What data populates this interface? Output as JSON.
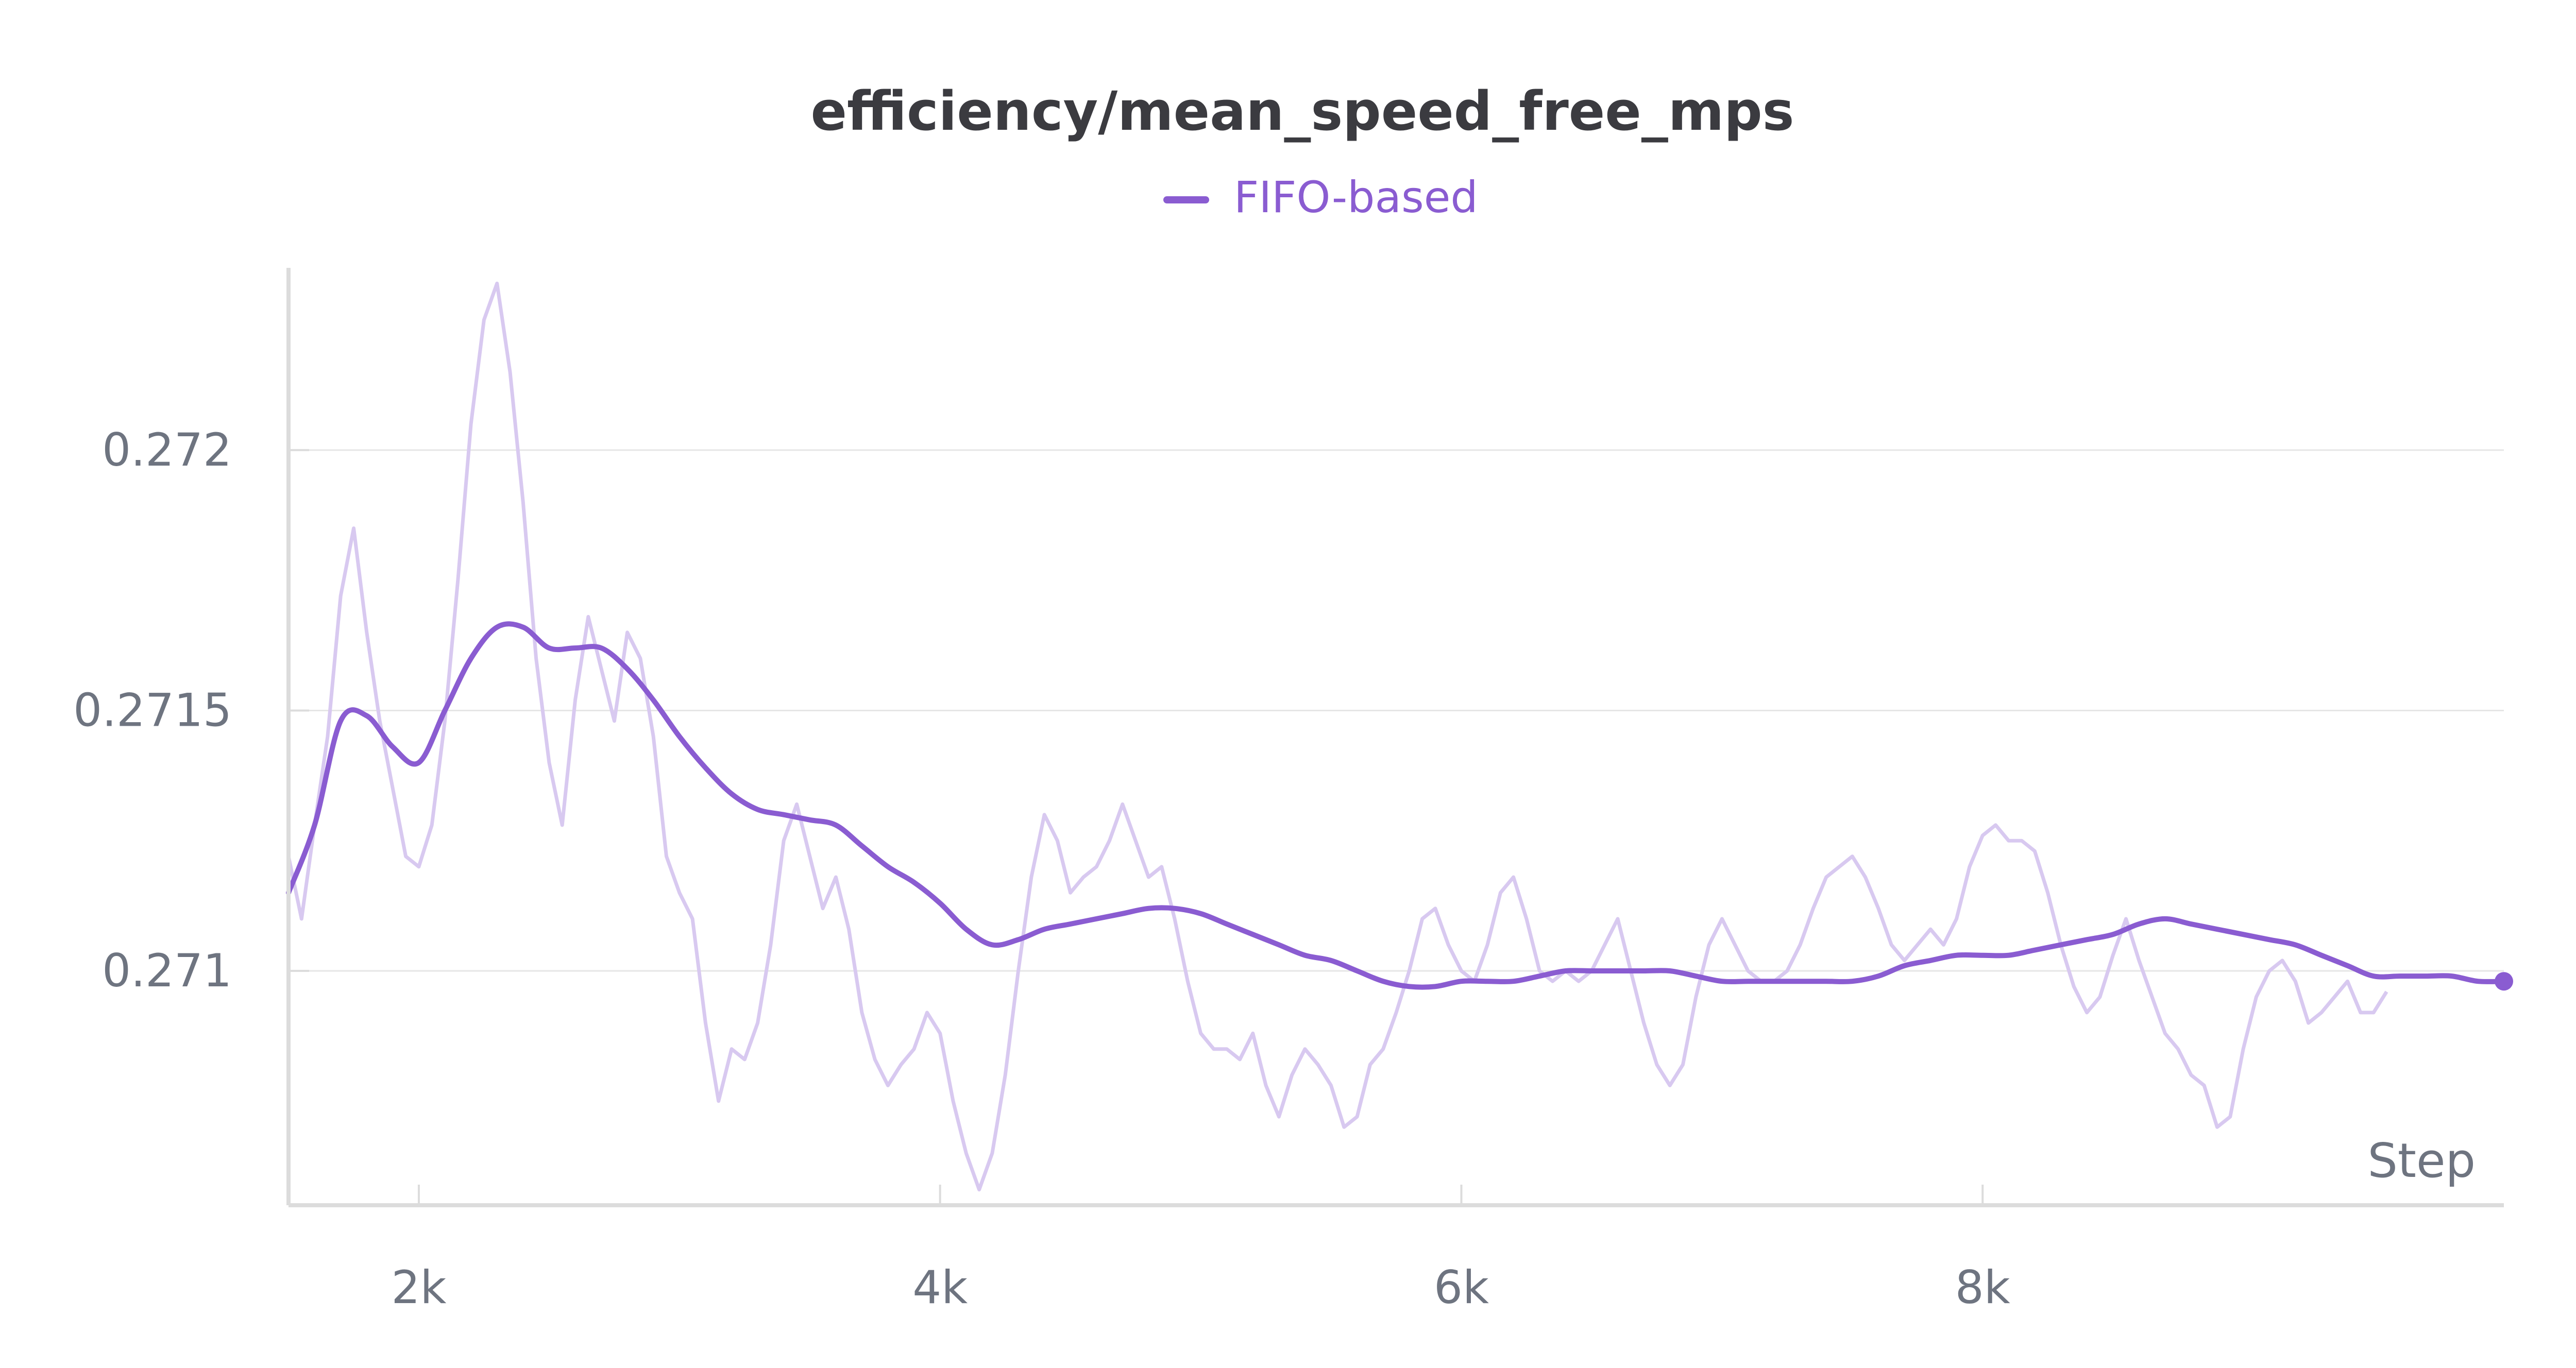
{
  "chart_data": {
    "type": "line",
    "title": "efficiency/mean_speed_free_mps",
    "xlabel": "Step",
    "ylabel": "",
    "xlim": [
      1500,
      10000
    ],
    "ylim": [
      0.27055,
      0.27235
    ],
    "x_ticks": [
      2000,
      4000,
      6000,
      8000
    ],
    "x_tick_labels": [
      "2k",
      "4k",
      "6k",
      "8k"
    ],
    "y_ticks": [
      0.271,
      0.2715,
      0.272
    ],
    "y_tick_labels": [
      "0.271",
      "0.2715",
      "0.272"
    ],
    "grid": true,
    "legend_position": "top-center",
    "colors": {
      "smoothed": "#8a5cd1",
      "raw": "#d8c9f0",
      "grid": "#e6e6e6",
      "axis": "#dcdcdc"
    },
    "series": [
      {
        "name": "FIFO-based",
        "kind": "smoothed",
        "points": [
          [
            1500,
            0.27115
          ],
          [
            1600,
            0.27128
          ],
          [
            1700,
            0.27148
          ],
          [
            1800,
            0.27149
          ],
          [
            1900,
            0.27143
          ],
          [
            2000,
            0.2714
          ],
          [
            2100,
            0.2715
          ],
          [
            2200,
            0.2716
          ],
          [
            2300,
            0.27166
          ],
          [
            2400,
            0.27166
          ],
          [
            2500,
            0.27162
          ],
          [
            2600,
            0.27162
          ],
          [
            2700,
            0.27162
          ],
          [
            2800,
            0.27158
          ],
          [
            2900,
            0.27152
          ],
          [
            3000,
            0.27145
          ],
          [
            3100,
            0.27139
          ],
          [
            3200,
            0.27134
          ],
          [
            3300,
            0.27131
          ],
          [
            3400,
            0.2713
          ],
          [
            3500,
            0.27129
          ],
          [
            3600,
            0.27128
          ],
          [
            3700,
            0.27124
          ],
          [
            3800,
            0.2712
          ],
          [
            3900,
            0.27117
          ],
          [
            4000,
            0.27113
          ],
          [
            4100,
            0.27108
          ],
          [
            4200,
            0.27105
          ],
          [
            4300,
            0.27106
          ],
          [
            4400,
            0.27108
          ],
          [
            4500,
            0.27109
          ],
          [
            4600,
            0.2711
          ],
          [
            4700,
            0.27111
          ],
          [
            4800,
            0.27112
          ],
          [
            4900,
            0.27112
          ],
          [
            5000,
            0.27111
          ],
          [
            5100,
            0.27109
          ],
          [
            5200,
            0.27107
          ],
          [
            5300,
            0.27105
          ],
          [
            5400,
            0.27103
          ],
          [
            5500,
            0.27102
          ],
          [
            5600,
            0.271
          ],
          [
            5700,
            0.27098
          ],
          [
            5800,
            0.27097
          ],
          [
            5900,
            0.27097
          ],
          [
            6000,
            0.27098
          ],
          [
            6100,
            0.27098
          ],
          [
            6200,
            0.27098
          ],
          [
            6300,
            0.27099
          ],
          [
            6400,
            0.271
          ],
          [
            6500,
            0.271
          ],
          [
            6600,
            0.271
          ],
          [
            6700,
            0.271
          ],
          [
            6800,
            0.271
          ],
          [
            6900,
            0.27099
          ],
          [
            7000,
            0.27098
          ],
          [
            7100,
            0.27098
          ],
          [
            7200,
            0.27098
          ],
          [
            7300,
            0.27098
          ],
          [
            7400,
            0.27098
          ],
          [
            7500,
            0.27098
          ],
          [
            7600,
            0.27099
          ],
          [
            7700,
            0.27101
          ],
          [
            7800,
            0.27102
          ],
          [
            7900,
            0.27103
          ],
          [
            8000,
            0.27103
          ],
          [
            8100,
            0.27103
          ],
          [
            8200,
            0.27104
          ],
          [
            8300,
            0.27105
          ],
          [
            8400,
            0.27106
          ],
          [
            8500,
            0.27107
          ],
          [
            8600,
            0.27109
          ],
          [
            8700,
            0.2711
          ],
          [
            8800,
            0.27109
          ],
          [
            8900,
            0.27108
          ],
          [
            9000,
            0.27107
          ],
          [
            9100,
            0.27106
          ],
          [
            9200,
            0.27105
          ],
          [
            9300,
            0.27103
          ],
          [
            9400,
            0.27101
          ],
          [
            9500,
            0.27099
          ],
          [
            9600,
            0.27099
          ],
          [
            9700,
            0.27099
          ],
          [
            9800,
            0.27099
          ],
          [
            9900,
            0.27098
          ],
          [
            10000,
            0.27098
          ]
        ]
      },
      {
        "name": "",
        "kind": "raw",
        "points": [
          [
            1500,
            0.27122
          ],
          [
            1550,
            0.2711
          ],
          [
            1600,
            0.27128
          ],
          [
            1650,
            0.27145
          ],
          [
            1700,
            0.27172
          ],
          [
            1750,
            0.27185
          ],
          [
            1800,
            0.27165
          ],
          [
            1850,
            0.27148
          ],
          [
            1900,
            0.27135
          ],
          [
            1950,
            0.27122
          ],
          [
            2000,
            0.2712
          ],
          [
            2050,
            0.27128
          ],
          [
            2100,
            0.27148
          ],
          [
            2150,
            0.27175
          ],
          [
            2200,
            0.27205
          ],
          [
            2250,
            0.27225
          ],
          [
            2300,
            0.27232
          ],
          [
            2350,
            0.27215
          ],
          [
            2400,
            0.2719
          ],
          [
            2450,
            0.2716
          ],
          [
            2500,
            0.2714
          ],
          [
            2550,
            0.27128
          ],
          [
            2600,
            0.27152
          ],
          [
            2650,
            0.27168
          ],
          [
            2700,
            0.27158
          ],
          [
            2750,
            0.27148
          ],
          [
            2800,
            0.27165
          ],
          [
            2850,
            0.2716
          ],
          [
            2900,
            0.27145
          ],
          [
            2950,
            0.27122
          ],
          [
            3000,
            0.27115
          ],
          [
            3050,
            0.2711
          ],
          [
            3100,
            0.2709
          ],
          [
            3150,
            0.27075
          ],
          [
            3200,
            0.27085
          ],
          [
            3250,
            0.27083
          ],
          [
            3300,
            0.2709
          ],
          [
            3350,
            0.27105
          ],
          [
            3400,
            0.27125
          ],
          [
            3450,
            0.27132
          ],
          [
            3500,
            0.27122
          ],
          [
            3550,
            0.27112
          ],
          [
            3600,
            0.27118
          ],
          [
            3650,
            0.27108
          ],
          [
            3700,
            0.27092
          ],
          [
            3750,
            0.27083
          ],
          [
            3800,
            0.27078
          ],
          [
            3850,
            0.27082
          ],
          [
            3900,
            0.27085
          ],
          [
            3950,
            0.27092
          ],
          [
            4000,
            0.27088
          ],
          [
            4050,
            0.27075
          ],
          [
            4100,
            0.27065
          ],
          [
            4150,
            0.27058
          ],
          [
            4200,
            0.27065
          ],
          [
            4250,
            0.2708
          ],
          [
            4300,
            0.271
          ],
          [
            4350,
            0.27118
          ],
          [
            4400,
            0.2713
          ],
          [
            4450,
            0.27125
          ],
          [
            4500,
            0.27115
          ],
          [
            4550,
            0.27118
          ],
          [
            4600,
            0.2712
          ],
          [
            4650,
            0.27125
          ],
          [
            4700,
            0.27132
          ],
          [
            4750,
            0.27125
          ],
          [
            4800,
            0.27118
          ],
          [
            4850,
            0.2712
          ],
          [
            4900,
            0.2711
          ],
          [
            4950,
            0.27098
          ],
          [
            5000,
            0.27088
          ],
          [
            5050,
            0.27085
          ],
          [
            5100,
            0.27085
          ],
          [
            5150,
            0.27083
          ],
          [
            5200,
            0.27088
          ],
          [
            5250,
            0.27078
          ],
          [
            5300,
            0.27072
          ],
          [
            5350,
            0.2708
          ],
          [
            5400,
            0.27085
          ],
          [
            5450,
            0.27082
          ],
          [
            5500,
            0.27078
          ],
          [
            5550,
            0.2707
          ],
          [
            5600,
            0.27072
          ],
          [
            5650,
            0.27082
          ],
          [
            5700,
            0.27085
          ],
          [
            5750,
            0.27092
          ],
          [
            5800,
            0.271
          ],
          [
            5850,
            0.2711
          ],
          [
            5900,
            0.27112
          ],
          [
            5950,
            0.27105
          ],
          [
            6000,
            0.271
          ],
          [
            6050,
            0.27098
          ],
          [
            6100,
            0.27105
          ],
          [
            6150,
            0.27115
          ],
          [
            6200,
            0.27118
          ],
          [
            6250,
            0.2711
          ],
          [
            6300,
            0.271
          ],
          [
            6350,
            0.27098
          ],
          [
            6400,
            0.271
          ],
          [
            6450,
            0.27098
          ],
          [
            6500,
            0.271
          ],
          [
            6550,
            0.27105
          ],
          [
            6600,
            0.2711
          ],
          [
            6650,
            0.271
          ],
          [
            6700,
            0.2709
          ],
          [
            6750,
            0.27082
          ],
          [
            6800,
            0.27078
          ],
          [
            6850,
            0.27082
          ],
          [
            6900,
            0.27095
          ],
          [
            6950,
            0.27105
          ],
          [
            7000,
            0.2711
          ],
          [
            7050,
            0.27105
          ],
          [
            7100,
            0.271
          ],
          [
            7150,
            0.27098
          ],
          [
            7200,
            0.27098
          ],
          [
            7250,
            0.271
          ],
          [
            7300,
            0.27105
          ],
          [
            7350,
            0.27112
          ],
          [
            7400,
            0.27118
          ],
          [
            7450,
            0.2712
          ],
          [
            7500,
            0.27122
          ],
          [
            7550,
            0.27118
          ],
          [
            7600,
            0.27112
          ],
          [
            7650,
            0.27105
          ],
          [
            7700,
            0.27102
          ],
          [
            7750,
            0.27105
          ],
          [
            7800,
            0.27108
          ],
          [
            7850,
            0.27105
          ],
          [
            7900,
            0.2711
          ],
          [
            7950,
            0.2712
          ],
          [
            8000,
            0.27126
          ],
          [
            8050,
            0.27128
          ],
          [
            8100,
            0.27125
          ],
          [
            8150,
            0.27125
          ],
          [
            8200,
            0.27123
          ],
          [
            8250,
            0.27115
          ],
          [
            8300,
            0.27105
          ],
          [
            8350,
            0.27097
          ],
          [
            8400,
            0.27092
          ],
          [
            8450,
            0.27095
          ],
          [
            8500,
            0.27103
          ],
          [
            8550,
            0.2711
          ],
          [
            8600,
            0.27102
          ],
          [
            8650,
            0.27095
          ],
          [
            8700,
            0.27088
          ],
          [
            8750,
            0.27085
          ],
          [
            8800,
            0.2708
          ],
          [
            8850,
            0.27078
          ],
          [
            8900,
            0.2707
          ],
          [
            8950,
            0.27072
          ],
          [
            9000,
            0.27085
          ],
          [
            9050,
            0.27095
          ],
          [
            9100,
            0.271
          ],
          [
            9150,
            0.27102
          ],
          [
            9200,
            0.27098
          ],
          [
            9250,
            0.2709
          ],
          [
            9300,
            0.27092
          ],
          [
            9350,
            0.27095
          ],
          [
            9400,
            0.27098
          ],
          [
            9450,
            0.27092
          ],
          [
            9500,
            0.27092
          ],
          [
            9550,
            0.27096
          ]
        ]
      }
    ],
    "end_marker": [
      10000,
      0.27098
    ]
  }
}
